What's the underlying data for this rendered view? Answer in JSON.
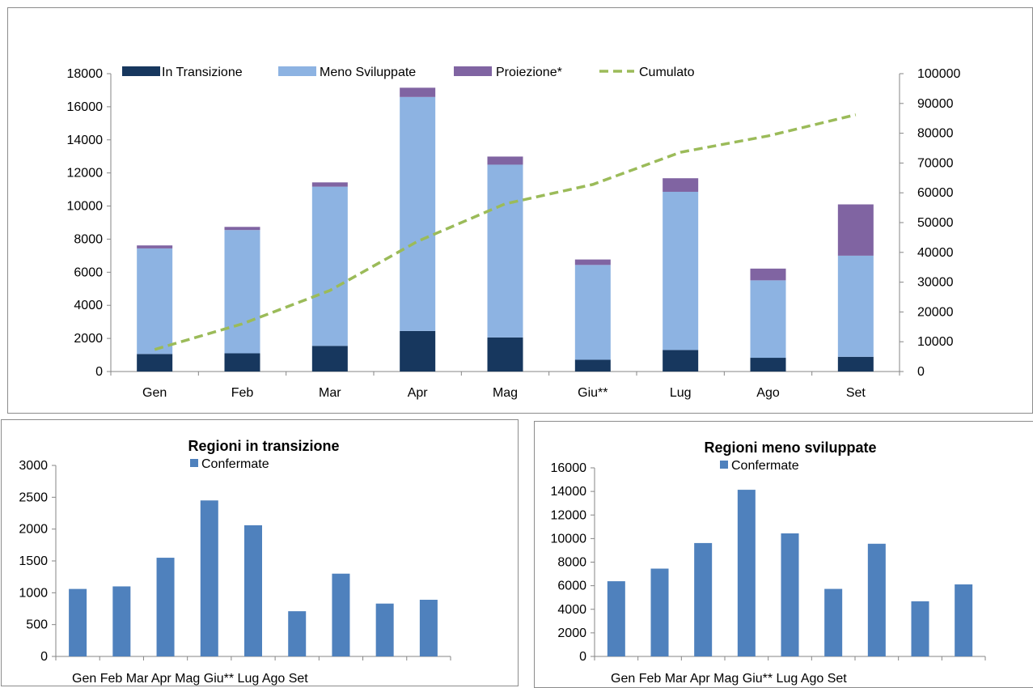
{
  "colors": {
    "in_transizione": "#17375e",
    "meno_sviluppate": "#8db3e2",
    "proiezione": "#8064a2",
    "cumulato": "#9bbb59",
    "confermate": "#4f81bd",
    "axis": "#868686"
  },
  "chart_data": [
    {
      "type": "bar",
      "stacked": true,
      "title": "",
      "categories": [
        "Gen",
        "Feb",
        "Mar",
        "Apr",
        "Mag",
        "Giu**",
        "Lug",
        "Ago",
        "Set"
      ],
      "series": [
        {
          "name": "In Transizione",
          "values": [
            1060,
            1100,
            1550,
            2450,
            2060,
            710,
            1300,
            830,
            890
          ]
        },
        {
          "name": "Meno Sviluppate",
          "values": [
            6380,
            7450,
            9620,
            14140,
            10440,
            5730,
            9560,
            4680,
            6110
          ]
        },
        {
          "name": "Proiezione*",
          "values": [
            180,
            190,
            260,
            560,
            490,
            330,
            820,
            710,
            3100
          ]
        }
      ],
      "line_series": {
        "name": "Cumulato",
        "axis": "right",
        "values": [
          7400,
          16000,
          27200,
          43700,
          56300,
          62800,
          73600,
          79100,
          86200
        ]
      },
      "ylim": [
        0,
        18000
      ],
      "yticks": [
        0,
        2000,
        4000,
        6000,
        8000,
        10000,
        12000,
        14000,
        16000,
        18000
      ],
      "y2lim": [
        0,
        100000
      ],
      "y2ticks": [
        0,
        10000,
        20000,
        30000,
        40000,
        50000,
        60000,
        70000,
        80000,
        90000,
        100000
      ],
      "legend": "top",
      "grid": false
    },
    {
      "type": "bar",
      "title": "Regioni in transizione",
      "categories": [
        "Gen",
        "Feb",
        "Mar",
        "Apr",
        "Mag",
        "Giu**",
        "Lug",
        "Ago",
        "Set"
      ],
      "series": [
        {
          "name": "Confermate",
          "values": [
            1060,
            1100,
            1550,
            2450,
            2060,
            710,
            1300,
            830,
            890
          ]
        }
      ],
      "ylim": [
        0,
        3000
      ],
      "yticks": [
        0,
        500,
        1000,
        1500,
        2000,
        2500,
        3000
      ],
      "legend": "top",
      "grid": false
    },
    {
      "type": "bar",
      "title": "Regioni meno sviluppate",
      "categories": [
        "Gen",
        "Feb",
        "Mar",
        "Apr",
        "Mag",
        "Giu**",
        "Lug",
        "Ago",
        "Set"
      ],
      "series": [
        {
          "name": "Confermate",
          "values": [
            6380,
            7450,
            9620,
            14140,
            10440,
            5730,
            9560,
            4680,
            6110
          ]
        }
      ],
      "ylim": [
        0,
        16000
      ],
      "yticks": [
        0,
        2000,
        4000,
        6000,
        8000,
        10000,
        12000,
        14000,
        16000
      ],
      "legend": "top",
      "grid": false
    }
  ]
}
